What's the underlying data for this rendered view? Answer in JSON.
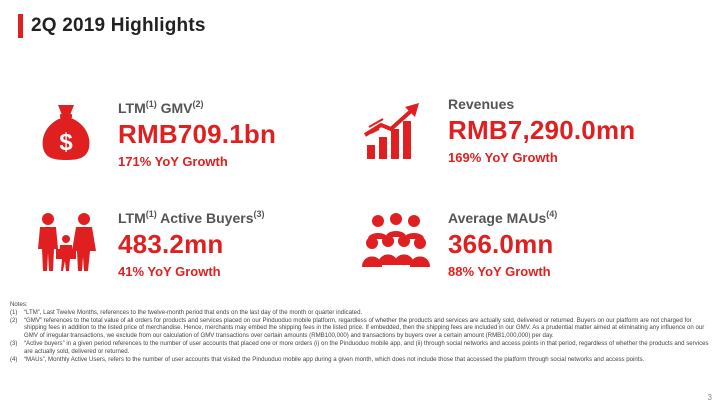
{
  "header": {
    "title": "2Q 2019 Highlights",
    "accent_color": "#e02020"
  },
  "metrics": {
    "gmv": {
      "icon": "money-bag-icon",
      "label": "LTM",
      "label_sup": "(1)",
      "label_rest": " GMV",
      "label_sup2": "(2)",
      "value": "RMB709.1bn",
      "growth": "171% YoY Growth"
    },
    "revenues": {
      "icon": "rocket-growth-chart-icon",
      "label": "Revenues",
      "value": "RMB7,290.0mn",
      "growth": "169% YoY Growth"
    },
    "buyers": {
      "icon": "family-shopping-icon",
      "label": "LTM",
      "label_sup": "(1)",
      "label_rest": " Active Buyers",
      "label_sup2": "(3)",
      "value": "483.2mn",
      "growth": "41% YoY Growth"
    },
    "maus": {
      "icon": "crowd-icon",
      "label": "Average MAUs",
      "label_sup": "(4)",
      "value": "366.0mn",
      "growth": "88% YoY Growth"
    }
  },
  "notes": {
    "heading": "Notes:",
    "items": [
      {
        "num": "(1)",
        "text": "“LTM”, Last Twelve Months, references to the twelve-month period that ends on the last day of the month or quarter indicated."
      },
      {
        "num": "(2)",
        "text": "“GMV” references to the total value of all orders for products and services placed on our Pinduoduo mobile platform, regardless of whether the products and services are actually sold, delivered or returned. Buyers on our platform are not charged for shipping fees in addition to the listed price of merchandise. Hence, merchants may embed the shipping fees in the listed price. If embedded, then the shipping fees are included in our GMV. As a prudential matter aimed at eliminating any influence on our GMV of irregular transactions, we exclude from our calculation of GMV transactions over certain amounts (RMB100,000) and transactions by buyers over a certain amount (RMB1,000,000) per day."
      },
      {
        "num": "(3)",
        "text": "“Active buyers” in a given period references to the number of user accounts that placed one or more orders (i) on the Pinduoduo mobile app, and (ii) through social networks and access points in that period, regardless of whether the products and services are actually sold, delivered or returned."
      },
      {
        "num": "(4)",
        "text": "“MAUs”, Monthly Active Users, refers to the number of user accounts that visited the Pinduoduo mobile app during a given month, which does not include those that accessed the platform through social networks and access points."
      }
    ]
  },
  "footer": {
    "page_number": "3"
  }
}
